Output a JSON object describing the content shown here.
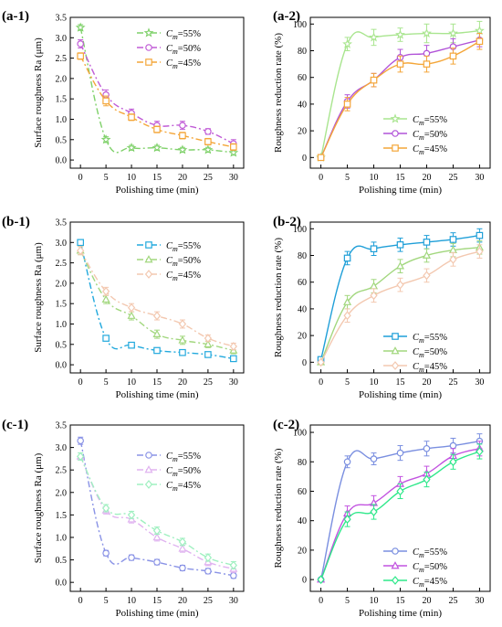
{
  "chart_data": [
    {
      "id": "a-1",
      "panel_label": "(a-1)",
      "type": "line",
      "xlabel": "Polishing time (min)",
      "ylabel": "Surface roughness Ra (μm)",
      "x": [
        0,
        5,
        10,
        15,
        20,
        25,
        30
      ],
      "xticks": [
        0,
        5,
        10,
        15,
        20,
        25,
        30
      ],
      "xlim": [
        -2,
        32
      ],
      "yticks": [
        "0.0",
        "0.5",
        "1.0",
        "1.5",
        "2.0",
        "2.5",
        "3.0",
        "3.5"
      ],
      "ylim": [
        -0.2,
        3.5
      ],
      "legend_position": "top-right",
      "series": [
        {
          "legend_prefix": "C",
          "legend_sub": "m",
          "legend_value": "=55%",
          "values": [
            3.25,
            0.5,
            0.3,
            0.3,
            0.25,
            0.25,
            0.18
          ],
          "err": [
            0.07,
            0.07,
            0.06,
            0.06,
            0.06,
            0.06,
            0.06
          ],
          "color": "#7fd16a",
          "marker": "star",
          "dash": "7 3 2 3"
        },
        {
          "legend_prefix": "C",
          "legend_sub": "m",
          "legend_value": "=50%",
          "values": [
            2.85,
            1.6,
            1.15,
            0.85,
            0.85,
            0.7,
            0.4
          ],
          "err": [
            0.1,
            0.12,
            0.1,
            0.1,
            0.1,
            0.07,
            0.1
          ],
          "color": "#c05bd6",
          "marker": "circle",
          "dash": "7 3 2 3"
        },
        {
          "legend_prefix": "C",
          "legend_sub": "m",
          "legend_value": "=45%",
          "values": [
            2.55,
            1.45,
            1.05,
            0.75,
            0.6,
            0.45,
            0.32
          ],
          "err": [
            0.08,
            0.12,
            0.08,
            0.08,
            0.08,
            0.08,
            0.08
          ],
          "color": "#f4a639",
          "marker": "square",
          "dash": "7 3 2 3"
        }
      ]
    },
    {
      "id": "a-2",
      "panel_label": "(a-2)",
      "type": "line",
      "xlabel": "Polishing time (min)",
      "ylabel": "Roughness reduction rate (%)",
      "x": [
        0,
        5,
        10,
        15,
        20,
        25,
        30
      ],
      "xticks": [
        0,
        5,
        10,
        15,
        20,
        25,
        30
      ],
      "xlim": [
        -2,
        32
      ],
      "yticks": [
        "0",
        "20",
        "40",
        "60",
        "80",
        "100"
      ],
      "ylim": [
        -8,
        105
      ],
      "legend_position": "bottom-right",
      "series": [
        {
          "legend_prefix": "C",
          "legend_sub": "m",
          "legend_value": "=55%",
          "values": [
            0,
            85,
            90,
            92,
            93,
            93,
            95
          ],
          "err": [
            0,
            5,
            6,
            5,
            7,
            7,
            7
          ],
          "color": "#a9e58f",
          "marker": "star",
          "dash": ""
        },
        {
          "legend_prefix": "C",
          "legend_sub": "m",
          "legend_value": "=50%",
          "values": [
            0,
            42,
            58,
            75,
            78,
            83,
            88
          ],
          "err": [
            0,
            5,
            5,
            6,
            6,
            6,
            5
          ],
          "color": "#b153d8",
          "marker": "circle",
          "dash": ""
        },
        {
          "legend_prefix": "C",
          "legend_sub": "m",
          "legend_value": "=45%",
          "values": [
            0,
            40,
            58,
            70,
            70,
            76,
            87
          ],
          "err": [
            0,
            5,
            5,
            6,
            6,
            6,
            6
          ],
          "color": "#f4a639",
          "marker": "square",
          "dash": ""
        }
      ]
    },
    {
      "id": "b-1",
      "panel_label": "(b-1)",
      "type": "line",
      "xlabel": "Polishing time (min)",
      "ylabel": "Surface roughness Ra (μm)",
      "x": [
        0,
        5,
        10,
        15,
        20,
        25,
        30
      ],
      "xticks": [
        0,
        5,
        10,
        15,
        20,
        25,
        30
      ],
      "xlim": [
        -2,
        32
      ],
      "yticks": [
        "0.0",
        "0.5",
        "1.0",
        "1.5",
        "2.0",
        "2.5",
        "3.0",
        "3.5"
      ],
      "ylim": [
        -0.2,
        3.5
      ],
      "legend_position": "top-right",
      "series": [
        {
          "legend_prefix": "C",
          "legend_sub": "m",
          "legend_value": "=55%",
          "values": [
            3.0,
            0.65,
            0.48,
            0.35,
            0.3,
            0.25,
            0.15
          ],
          "err": [
            0.06,
            0.06,
            0.06,
            0.06,
            0.06,
            0.06,
            0.06
          ],
          "color": "#22a9dd",
          "marker": "square",
          "dash": "7 3 2 3"
        },
        {
          "legend_prefix": "C",
          "legend_sub": "m",
          "legend_value": "=50%",
          "values": [
            2.8,
            1.6,
            1.2,
            0.75,
            0.6,
            0.5,
            0.35
          ],
          "err": [
            0.1,
            0.1,
            0.1,
            0.1,
            0.1,
            0.08,
            0.08
          ],
          "color": "#a2d77e",
          "marker": "triangle",
          "dash": "7 3 2 3"
        },
        {
          "legend_prefix": "C",
          "legend_sub": "m",
          "legend_value": "=45%",
          "values": [
            2.8,
            1.8,
            1.4,
            1.2,
            1.0,
            0.65,
            0.45
          ],
          "err": [
            0.1,
            0.1,
            0.1,
            0.1,
            0.1,
            0.08,
            0.08
          ],
          "color": "#f3c8b0",
          "marker": "diamond",
          "dash": "7 3 2 3"
        }
      ]
    },
    {
      "id": "b-2",
      "panel_label": "(b-2)",
      "type": "line",
      "xlabel": "Polishing time (min)",
      "ylabel": "Roughness reduction rate (%)",
      "x": [
        0,
        5,
        10,
        15,
        20,
        25,
        30
      ],
      "xticks": [
        0,
        5,
        10,
        15,
        20,
        25,
        30
      ],
      "xlim": [
        -2,
        32
      ],
      "yticks": [
        "0",
        "20",
        "40",
        "60",
        "80",
        "100"
      ],
      "ylim": [
        -8,
        105
      ],
      "legend_position": "bottom-right",
      "series": [
        {
          "legend_prefix": "C",
          "legend_sub": "m",
          "legend_value": "=55%",
          "values": [
            2,
            78,
            85,
            88,
            90,
            92,
            95
          ],
          "err": [
            0,
            5,
            5,
            5,
            5,
            5,
            5
          ],
          "color": "#1f9fd8",
          "marker": "square",
          "dash": ""
        },
        {
          "legend_prefix": "C",
          "legend_sub": "m",
          "legend_value": "=50%",
          "values": [
            0,
            45,
            57,
            72,
            80,
            84,
            86
          ],
          "err": [
            0,
            5,
            5,
            5,
            5,
            5,
            5
          ],
          "color": "#a2d77e",
          "marker": "triangle",
          "dash": ""
        },
        {
          "legend_prefix": "C",
          "legend_sub": "m",
          "legend_value": "=45%",
          "values": [
            0,
            35,
            50,
            58,
            65,
            77,
            83
          ],
          "err": [
            0,
            5,
            5,
            5,
            5,
            5,
            5
          ],
          "color": "#f3c8b0",
          "marker": "diamond",
          "dash": ""
        }
      ]
    },
    {
      "id": "c-1",
      "panel_label": "(c-1)",
      "type": "line",
      "xlabel": "Polishing time (min)",
      "ylabel": "Surface roughness Ra (μm)",
      "x": [
        0,
        5,
        10,
        15,
        20,
        25,
        30
      ],
      "xticks": [
        0,
        5,
        10,
        15,
        20,
        25,
        30
      ],
      "xlim": [
        -2,
        32
      ],
      "yticks": [
        "0.0",
        "0.5",
        "1.0",
        "1.5",
        "2.0",
        "2.5",
        "3.0",
        "3.5"
      ],
      "ylim": [
        -0.2,
        3.5
      ],
      "legend_position": "top-right",
      "series": [
        {
          "legend_prefix": "C",
          "legend_sub": "m",
          "legend_value": "=55%",
          "values": [
            3.15,
            0.65,
            0.55,
            0.45,
            0.32,
            0.25,
            0.15
          ],
          "err": [
            0.08,
            0.06,
            0.06,
            0.06,
            0.06,
            0.06,
            0.06
          ],
          "color": "#8a93e6",
          "marker": "circle",
          "dash": "7 3 2 3"
        },
        {
          "legend_prefix": "C",
          "legend_sub": "m",
          "legend_value": "=50%",
          "values": [
            2.8,
            1.6,
            1.4,
            1.0,
            0.75,
            0.45,
            0.3
          ],
          "err": [
            0.08,
            0.08,
            0.08,
            0.08,
            0.08,
            0.08,
            0.08
          ],
          "color": "#e0b3f0",
          "marker": "triangle",
          "dash": "7 3 2 3"
        },
        {
          "legend_prefix": "C",
          "legend_sub": "m",
          "legend_value": "=45%",
          "values": [
            2.8,
            1.65,
            1.5,
            1.15,
            0.9,
            0.55,
            0.38
          ],
          "err": [
            0.08,
            0.08,
            0.08,
            0.08,
            0.08,
            0.08,
            0.08
          ],
          "color": "#9ff0c0",
          "marker": "diamond",
          "dash": "7 3 2 3"
        }
      ]
    },
    {
      "id": "c-2",
      "panel_label": "(c-2)",
      "type": "line",
      "xlabel": "Polishing time (min)",
      "ylabel": "Roughness reduction rate (%)",
      "x": [
        0,
        5,
        10,
        15,
        20,
        25,
        30
      ],
      "xticks": [
        0,
        5,
        10,
        15,
        20,
        25,
        30
      ],
      "xlim": [
        -2,
        32
      ],
      "yticks": [
        "0",
        "20",
        "40",
        "60",
        "80",
        "100"
      ],
      "ylim": [
        -8,
        105
      ],
      "legend_position": "bottom-right",
      "series": [
        {
          "legend_prefix": "C",
          "legend_sub": "m",
          "legend_value": "=55%",
          "values": [
            0,
            80,
            82,
            86,
            89,
            91,
            94
          ],
          "err": [
            0,
            4,
            4,
            5,
            5,
            5,
            5
          ],
          "color": "#7a8fe0",
          "marker": "circle",
          "dash": ""
        },
        {
          "legend_prefix": "C",
          "legend_sub": "m",
          "legend_value": "=50%",
          "values": [
            0,
            45,
            52,
            65,
            72,
            84,
            89
          ],
          "err": [
            0,
            5,
            5,
            5,
            5,
            5,
            5
          ],
          "color": "#c253e0",
          "marker": "triangle",
          "dash": ""
        },
        {
          "legend_prefix": "C",
          "legend_sub": "m",
          "legend_value": "=45%",
          "values": [
            0,
            41,
            46,
            60,
            68,
            80,
            87
          ],
          "err": [
            0,
            5,
            5,
            5,
            5,
            5,
            5
          ],
          "color": "#2ee88a",
          "marker": "diamond",
          "dash": ""
        }
      ]
    }
  ]
}
